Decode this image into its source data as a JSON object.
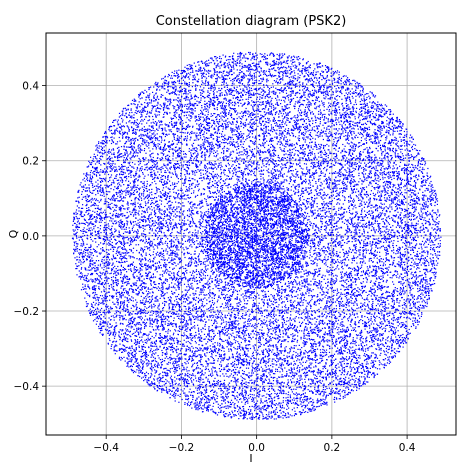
{
  "chart_data": {
    "type": "scatter",
    "title": "Constellation diagram (PSK2)",
    "xlabel": "I",
    "ylabel": "Q",
    "xlim": [
      -0.56,
      0.53
    ],
    "ylim": [
      -0.53,
      0.54
    ],
    "xticks": [
      -0.4,
      -0.2,
      0.0,
      0.2,
      0.4
    ],
    "xtick_labels": [
      "−0.4",
      "−0.2",
      "0.0",
      "0.2",
      "0.4"
    ],
    "yticks": [
      -0.4,
      -0.2,
      0.0,
      0.2,
      0.4
    ],
    "ytick_labels": [
      "−0.4",
      "−0.2",
      "0.0",
      "0.2",
      "0.4"
    ],
    "grid": true,
    "marker_color": "#0000ff",
    "series": [
      {
        "distribution": [
          {
            "shape": "disk",
            "center": [
              0.0,
              0.0
            ],
            "radius_range": [
              0.0,
              0.14
            ],
            "count": 4000
          },
          {
            "shape": "ring",
            "center": [
              0.0,
              0.0
            ],
            "radius_range": [
              0.14,
              0.25
            ],
            "count": 3500
          },
          {
            "shape": "ring",
            "center": [
              0.0,
              0.0
            ],
            "radius_range": [
              0.25,
              0.49
            ],
            "count": 16000
          }
        ]
      }
    ]
  }
}
